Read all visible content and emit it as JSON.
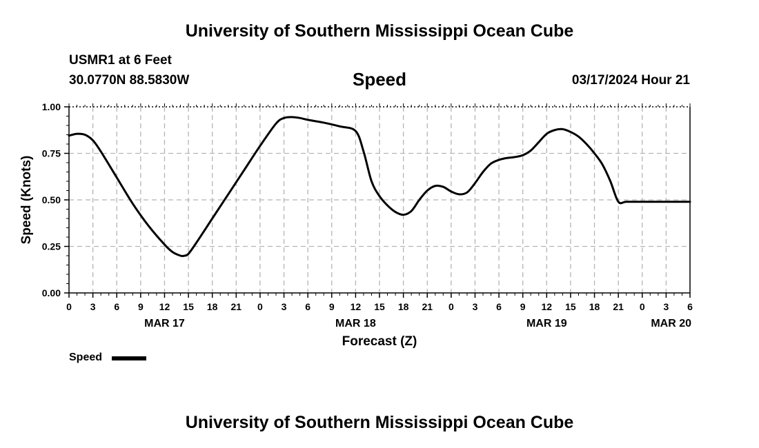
{
  "page": {
    "title": "University of Southern Mississippi Ocean Cube",
    "footer_title": "University of Southern Mississippi Ocean Cube"
  },
  "header": {
    "station": "USMR1 at 6 Feet",
    "coordinates": "30.0770N  88.5830W",
    "variable": "Speed",
    "timestamp": "03/17/2024 Hour 21"
  },
  "legend": {
    "label": "Speed"
  },
  "colors": {
    "line": "#000000",
    "grid": "#b4b4b4",
    "background": "#ffffff"
  },
  "chart_data": {
    "type": "line",
    "title": "Speed",
    "xlabel": "Forecast (Z)",
    "ylabel": "Speed (Knots)",
    "x_units": "hours since MAR 17 00Z",
    "xlim": [
      0,
      78
    ],
    "ylim": [
      0,
      1.0
    ],
    "grid": true,
    "y_ticks": [
      0,
      0.25,
      0.5,
      0.75,
      1.0
    ],
    "y_tick_labels": [
      "0.00",
      "0.25",
      "0.50",
      "0.75",
      "1.00"
    ],
    "x_ticks": [
      0,
      3,
      6,
      9,
      12,
      15,
      18,
      21,
      24,
      27,
      30,
      33,
      36,
      39,
      42,
      45,
      48,
      51,
      54,
      57,
      60,
      63,
      66,
      69,
      72,
      75,
      78
    ],
    "x_tick_labels": [
      "0",
      "3",
      "6",
      "9",
      "12",
      "15",
      "18",
      "21",
      "0",
      "3",
      "6",
      "9",
      "12",
      "15",
      "18",
      "21",
      "0",
      "3",
      "6",
      "9",
      "12",
      "15",
      "18",
      "21",
      "0",
      "3",
      "6"
    ],
    "date_labels": [
      {
        "x": 12,
        "label": "MAR 17"
      },
      {
        "x": 36,
        "label": "MAR 18"
      },
      {
        "x": 60,
        "label": "MAR 19"
      },
      {
        "x": 78,
        "label": "MAR 20"
      }
    ],
    "series": [
      {
        "name": "Speed",
        "x": [
          0,
          1,
          2,
          3,
          4,
          6,
          8,
          10,
          12,
          13,
          14,
          14.5,
          15,
          16,
          18,
          20,
          22,
          24,
          26,
          27,
          28,
          29,
          30,
          32,
          34,
          36,
          37,
          38,
          39,
          40,
          41,
          42,
          43,
          44,
          45,
          46,
          47,
          48,
          49,
          50,
          51,
          52,
          53,
          54,
          55,
          56,
          57,
          58,
          59,
          60,
          61,
          62,
          63,
          64,
          65,
          66,
          67,
          68,
          69,
          70,
          72,
          74,
          76,
          78
        ],
        "values": [
          0.845,
          0.855,
          0.85,
          0.82,
          0.76,
          0.62,
          0.48,
          0.36,
          0.26,
          0.22,
          0.2,
          0.2,
          0.21,
          0.27,
          0.4,
          0.53,
          0.66,
          0.79,
          0.91,
          0.94,
          0.945,
          0.94,
          0.93,
          0.915,
          0.895,
          0.87,
          0.76,
          0.6,
          0.52,
          0.47,
          0.435,
          0.42,
          0.44,
          0.5,
          0.55,
          0.575,
          0.57,
          0.545,
          0.53,
          0.54,
          0.59,
          0.65,
          0.695,
          0.715,
          0.725,
          0.73,
          0.74,
          0.765,
          0.81,
          0.855,
          0.875,
          0.88,
          0.865,
          0.84,
          0.8,
          0.75,
          0.69,
          0.6,
          0.49,
          0.49,
          0.49,
          0.49,
          0.49,
          0.49
        ]
      }
    ]
  }
}
